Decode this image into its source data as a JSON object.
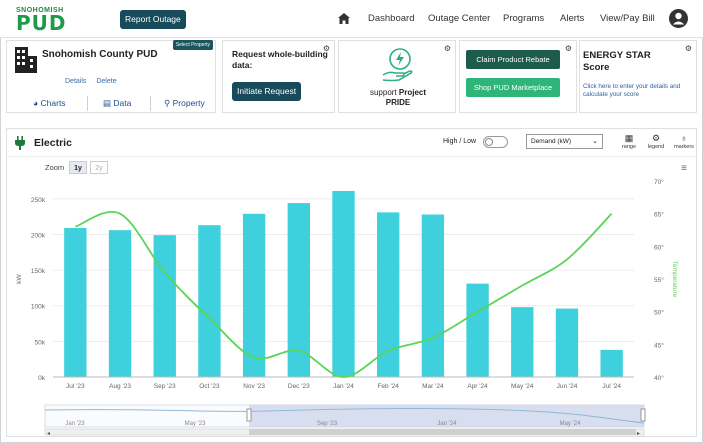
{
  "header": {
    "logo_small": "SNOHOMISH",
    "logo_big": "PUD",
    "report_outage": "Report Outage",
    "nav": [
      "Dashboard",
      "Outage Center",
      "Programs",
      "Alerts",
      "View/Pay Bill"
    ],
    "icons": [
      "home-icon",
      "user-icon"
    ]
  },
  "account": {
    "name": "Snohomish County PUD",
    "select_property": "Select Property",
    "details": "Details",
    "delete": "Delete",
    "tabs": [
      "Charts",
      "Data",
      "Property"
    ]
  },
  "request": {
    "text": "Request whole-building data:",
    "button": "Initiate Request"
  },
  "pride": {
    "line1": "support",
    "line1b": "Project",
    "line2": "PRIDE"
  },
  "rebate": {
    "claim": "Claim Product Rebate",
    "shop": "Shop PUD Marketplace"
  },
  "energystar": {
    "title_line1": "ENERGY STAR",
    "title_line2": "Score",
    "link": "Click here to enter your details and calculate your score"
  },
  "chart_card": {
    "title": "Electric",
    "high_low": "High / Low",
    "select": "Demand (kW)",
    "controls": [
      "range",
      "legend",
      "markers"
    ],
    "zoom_label": "Zoom",
    "zoom_options": [
      "1y",
      "2y"
    ]
  },
  "chart_data": {
    "type": "bar",
    "categories": [
      "Jul '23",
      "Aug '23",
      "Sep '23",
      "Oct '23",
      "Nov '23",
      "Dec '23",
      "Jan '24",
      "Feb '24",
      "Mar '24",
      "Apr '24",
      "May '24",
      "Jun '24",
      "Jul '24"
    ],
    "series": [
      {
        "values": [
          209000,
          206000,
          199000,
          213000,
          229000,
          244000,
          261000,
          231000,
          228000,
          131000,
          98000,
          96000,
          38000
        ]
      },
      {
        "name": "Temperature",
        "type": "line",
        "values": [
          63,
          65,
          56,
          49,
          43,
          44,
          40,
          44,
          46,
          50,
          54,
          58,
          65
        ]
      }
    ],
    "y_left_ticks": [
      "0k",
      "50k",
      "100k",
      "150k",
      "200k",
      "250k"
    ],
    "y_left_range": [
      0,
      275000
    ],
    "y_left_label": "kW",
    "y_right_ticks": [
      "40°",
      "45°",
      "50°",
      "55°",
      "60°",
      "65°",
      "70°"
    ],
    "y_right_range": [
      40,
      70
    ],
    "y_right_label": "Temperature",
    "navigator_labels": [
      "Jan '23",
      "May '23",
      "Sep '23",
      "Jan '24",
      "May '24"
    ],
    "colors": {
      "bar": "#3ed0dc",
      "line": "#5ad45a",
      "navigator_fill": "#c9d2e8"
    }
  }
}
